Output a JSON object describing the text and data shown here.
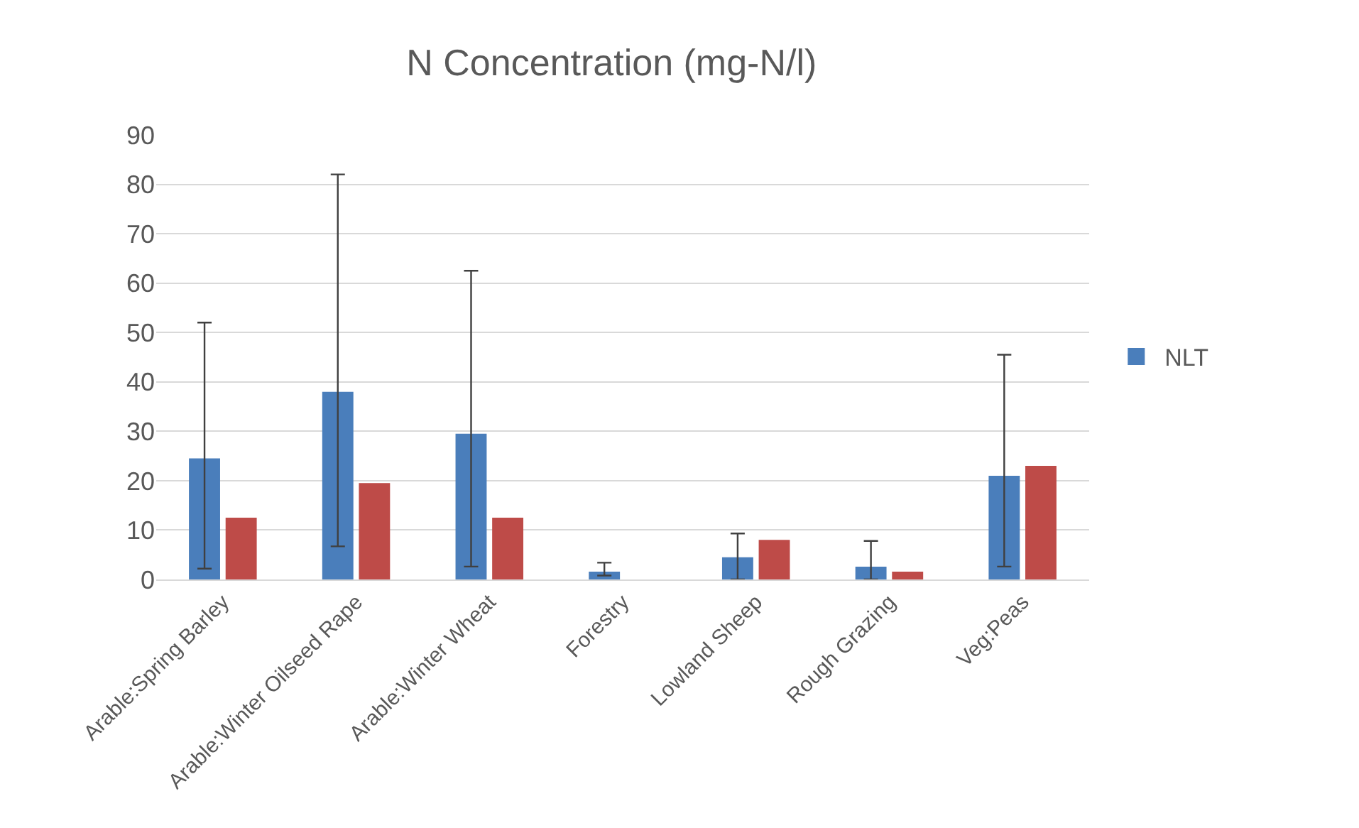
{
  "chart_data": {
    "type": "bar",
    "title": "N Concentration (mg-N/l)",
    "categories": [
      "Arable:Spring Barley",
      "Arable:Winter Oilseed Rape",
      "Arable:Winter Wheat",
      "Forestry",
      "Lowland Sheep",
      "Rough Grazing",
      "Veg:Peas"
    ],
    "series": [
      {
        "name": "NLT",
        "color": "#4a7ebb",
        "values": [
          24.5,
          38,
          29.5,
          1.6,
          4.5,
          2.6,
          21
        ],
        "errors": [
          [
            2.2,
            52
          ],
          [
            6.7,
            82
          ],
          [
            2.6,
            62.5
          ],
          [
            0.8,
            3.4
          ],
          [
            0,
            9.3
          ],
          [
            0,
            7.8
          ],
          [
            2.6,
            45.5
          ]
        ]
      },
      {
        "color": "#be4b48",
        "values": [
          12.5,
          19.5,
          12.5,
          0,
          8,
          1.6,
          23
        ]
      }
    ],
    "ylim": [
      0,
      90
    ],
    "yticks": [
      0,
      10,
      20,
      30,
      40,
      50,
      60,
      70,
      80,
      90
    ],
    "grid": "y",
    "legend": "right"
  }
}
